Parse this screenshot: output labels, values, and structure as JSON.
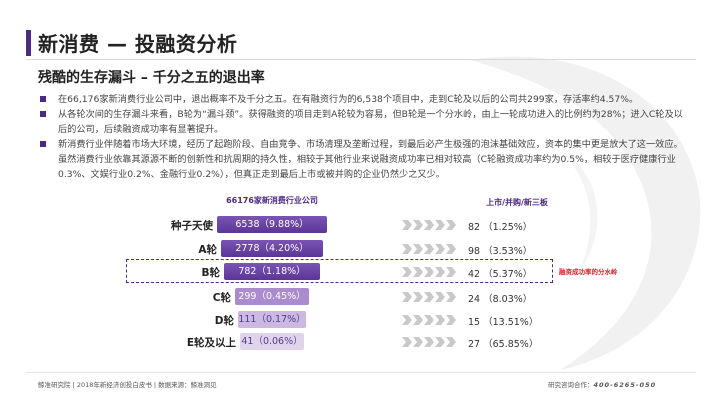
{
  "header": {
    "title": "新消费 — 投融资分析",
    "subtitle": "残酷的生存漏斗 – 千分之五的退出率"
  },
  "bullets": [
    "在66,176家新消费行业公司中，退出概率不及千分之五。在有融资行为的6,538个项目中，走到C轮及以后的公司共299家，存活率约4.57%。",
    "从各轮次间的生存漏斗来看，B轮为“漏斗颈”。获得融资的项目走到A轮较为容易，但B轮是一个分水岭，由上一轮成功进入的比例约为28%；进入C轮及以后的公司，后续融资成功率有显著提升。",
    "新消费行业伴随着市场大环境，经历了起跑阶段、自由竞争、市场清理及垄断过程，到最后必产生极强的泡沫基础效应，资本的集中更是放大了这一效应。虽然消费行业依靠其源源不断的创新性和抗周期的持久性，相较于其他行业来说融资成功率已相对较高（C轮融资成功率约为0.5%，相较于医疗健康行业0.3%、文娱行业0.2%、金融行业0.2%），但真正走到最后上市或被并购的企业仍然少之又少。"
  ],
  "funnel": {
    "header": "66176家新消费行业公司",
    "right_header": "上市/并购/新三板",
    "stages": [
      {
        "label": "种子天使",
        "bar_text": "6538（9.88%）",
        "count": 6538,
        "right": "82 （1.25%）"
      },
      {
        "label": "A轮",
        "bar_text": "2778（4.20%）",
        "count": 2778,
        "right": "98 （3.53%）"
      },
      {
        "label": "B轮",
        "bar_text": "782（1.18%）",
        "count": 782,
        "right": "42 （5.37%）"
      },
      {
        "label": "C轮",
        "bar_text": "299（0.45%）",
        "count": 299,
        "right": "24 （8.03%）"
      },
      {
        "label": "D轮",
        "bar_text": "111（0.17%）",
        "count": 111,
        "right": "15 （13.51%）"
      },
      {
        "label": "E轮及以上",
        "bar_text": "41（0.06%）",
        "count": 41,
        "right": "27 （65.85%）"
      }
    ],
    "note": "融资成功率的分水岭"
  },
  "footer": {
    "left": "鲸准研究院 | 2018年新经济创投白皮书 | 数据来源：鲸准洞见",
    "right_label": "研究咨询合作：",
    "phone": "400-6265-050"
  },
  "colors": {
    "accent": "#4b2a86",
    "bar": "#5b3596",
    "note": "#d2232a"
  }
}
